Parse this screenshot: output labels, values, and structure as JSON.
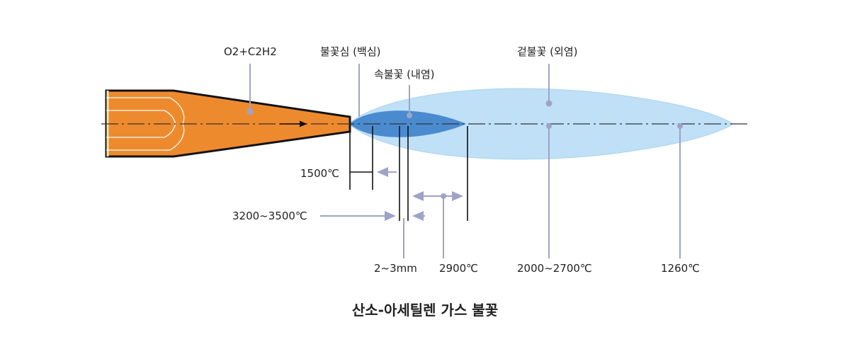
{
  "labels": {
    "gas_mixture": "O2+C2H2",
    "flame_core": "불꽃심 (백심)",
    "inner_flame": "속불꽃 (내염)",
    "outer_flame": "겉불꽃 (외염)",
    "temp_1500": "1500℃",
    "temp_3200_3500": "3200~3500℃",
    "distance_2_3mm": "2~3mm",
    "temp_2900": "2900℃",
    "temp_2000_2700": "2000~2700℃",
    "temp_1260": "1260℃"
  },
  "caption": "산소-아세틸렌 가스 불꽃",
  "colors": {
    "torch_fill": "#ee8a2e",
    "outer_flame": "#bfe0f6",
    "inner_flame": "#3d82cc",
    "leader_line": "#9fa3c8",
    "outline": "#111111"
  }
}
